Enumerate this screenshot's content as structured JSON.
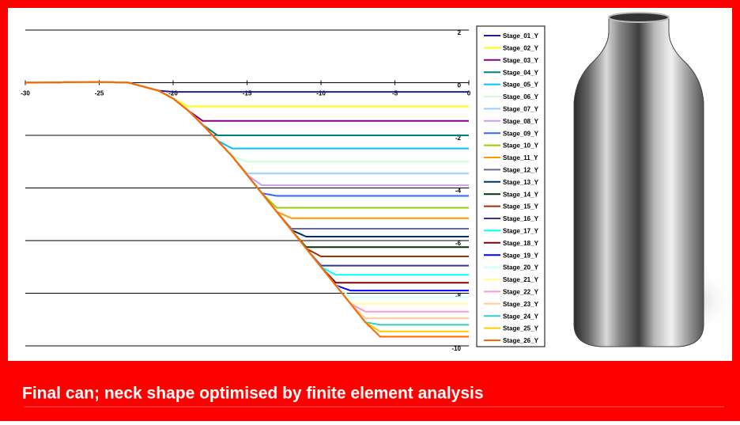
{
  "chart_data": {
    "type": "line",
    "x": [
      -30,
      -25,
      -23,
      -21,
      -20,
      -19,
      -18,
      -17,
      -16,
      -15,
      -14,
      -13,
      -12,
      -11,
      -10,
      -9,
      -8,
      -7,
      -6,
      -3,
      0
    ],
    "xlim": [
      -30,
      0
    ],
    "xticks": [
      -30,
      -25,
      -20,
      -15,
      -10,
      -5,
      0
    ],
    "ylim": [
      -10,
      2
    ],
    "yticks": [
      2,
      0,
      -2,
      -4,
      -6,
      -8,
      -10
    ],
    "grid": true,
    "series": [
      {
        "name": "Stage_01_Y",
        "color": "#1f1f8f",
        "values": [
          0,
          0.03,
          0,
          -0.3,
          -0.35,
          -0.35,
          -0.35,
          -0.35,
          -0.35,
          -0.35,
          -0.35,
          -0.35,
          -0.35,
          -0.35,
          -0.35,
          -0.35,
          -0.35,
          -0.35,
          -0.35,
          -0.35,
          -0.35
        ]
      },
      {
        "name": "Stage_02_Y",
        "color": "#ffff00",
        "values": [
          0,
          0.03,
          0,
          -0.3,
          -0.6,
          -0.9,
          -0.9,
          -0.9,
          -0.9,
          -0.9,
          -0.9,
          -0.9,
          -0.9,
          -0.9,
          -0.9,
          -0.9,
          -0.9,
          -0.9,
          -0.9,
          -0.9,
          -0.9
        ]
      },
      {
        "name": "Stage_03_Y",
        "color": "#800080",
        "values": [
          0,
          0.03,
          0,
          -0.3,
          -0.6,
          -1.05,
          -1.45,
          -1.45,
          -1.45,
          -1.45,
          -1.45,
          -1.45,
          -1.45,
          -1.45,
          -1.45,
          -1.45,
          -1.45,
          -1.45,
          -1.45,
          -1.45,
          -1.45
        ]
      },
      {
        "name": "Stage_04_Y",
        "color": "#008080",
        "values": [
          0,
          0.03,
          0,
          -0.3,
          -0.6,
          -1.05,
          -1.6,
          -2.0,
          -2.0,
          -2.0,
          -2.0,
          -2.0,
          -2.0,
          -2.0,
          -2.0,
          -2.0,
          -2.0,
          -2.0,
          -2.0,
          -2.0,
          -2.0
        ]
      },
      {
        "name": "Stage_05_Y",
        "color": "#00c0ff",
        "values": [
          0,
          0.03,
          0,
          -0.3,
          -0.6,
          -1.05,
          -1.6,
          -2.2,
          -2.5,
          -2.5,
          -2.5,
          -2.5,
          -2.5,
          -2.5,
          -2.5,
          -2.5,
          -2.5,
          -2.5,
          -2.5,
          -2.5,
          -2.5
        ]
      },
      {
        "name": "Stage_06_Y",
        "color": "#ccffcc",
        "values": [
          0,
          0.03,
          0,
          -0.3,
          -0.6,
          -1.05,
          -1.6,
          -2.2,
          -2.8,
          -3.0,
          -3.0,
          -3.0,
          -3.0,
          -3.0,
          -3.0,
          -3.0,
          -3.0,
          -3.0,
          -3.0,
          -3.0,
          -3.0
        ]
      },
      {
        "name": "Stage_07_Y",
        "color": "#99ccff",
        "values": [
          0,
          0.03,
          0,
          -0.3,
          -0.6,
          -1.05,
          -1.6,
          -2.2,
          -2.8,
          -3.45,
          -3.45,
          -3.45,
          -3.45,
          -3.45,
          -3.45,
          -3.45,
          -3.45,
          -3.45,
          -3.45,
          -3.45,
          -3.45
        ]
      },
      {
        "name": "Stage_08_Y",
        "color": "#cc99ff",
        "values": [
          0,
          0.03,
          0,
          -0.3,
          -0.6,
          -1.05,
          -1.6,
          -2.2,
          -2.8,
          -3.5,
          -3.9,
          -3.9,
          -3.9,
          -3.9,
          -3.9,
          -3.9,
          -3.9,
          -3.9,
          -3.9,
          -3.9,
          -3.9
        ]
      },
      {
        "name": "Stage_09_Y",
        "color": "#3366ff",
        "values": [
          0,
          0.03,
          0,
          -0.3,
          -0.6,
          -1.05,
          -1.6,
          -2.2,
          -2.8,
          -3.5,
          -4.2,
          -4.3,
          -4.3,
          -4.3,
          -4.3,
          -4.3,
          -4.3,
          -4.3,
          -4.3,
          -4.3,
          -4.3
        ]
      },
      {
        "name": "Stage_10_Y",
        "color": "#99cc00",
        "values": [
          0,
          0.03,
          0,
          -0.3,
          -0.6,
          -1.05,
          -1.6,
          -2.2,
          -2.8,
          -3.5,
          -4.2,
          -4.75,
          -4.75,
          -4.75,
          -4.75,
          -4.75,
          -4.75,
          -4.75,
          -4.75,
          -4.75,
          -4.75
        ]
      },
      {
        "name": "Stage_11_Y",
        "color": "#ff9900",
        "values": [
          0,
          0.03,
          0,
          -0.3,
          -0.6,
          -1.05,
          -1.6,
          -2.2,
          -2.8,
          -3.5,
          -4.2,
          -4.9,
          -5.15,
          -5.15,
          -5.15,
          -5.15,
          -5.15,
          -5.15,
          -5.15,
          -5.15,
          -5.15
        ]
      },
      {
        "name": "Stage_12_Y",
        "color": "#666699",
        "values": [
          0,
          0.03,
          0,
          -0.3,
          -0.6,
          -1.05,
          -1.6,
          -2.2,
          -2.8,
          -3.5,
          -4.2,
          -4.9,
          -5.55,
          -5.55,
          -5.55,
          -5.55,
          -5.55,
          -5.55,
          -5.55,
          -5.55,
          -5.55
        ]
      },
      {
        "name": "Stage_13_Y",
        "color": "#003366",
        "values": [
          0,
          0.03,
          0,
          -0.3,
          -0.6,
          -1.05,
          -1.6,
          -2.2,
          -2.8,
          -3.5,
          -4.2,
          -4.9,
          -5.6,
          -5.85,
          -5.85,
          -5.85,
          -5.85,
          -5.85,
          -5.85,
          -5.85,
          -5.85
        ]
      },
      {
        "name": "Stage_14_Y",
        "color": "#003300",
        "values": [
          0,
          0.03,
          0,
          -0.3,
          -0.6,
          -1.05,
          -1.6,
          -2.2,
          -2.8,
          -3.5,
          -4.2,
          -4.9,
          -5.6,
          -6.25,
          -6.25,
          -6.25,
          -6.25,
          -6.25,
          -6.25,
          -6.25,
          -6.25
        ]
      },
      {
        "name": "Stage_15_Y",
        "color": "#993300",
        "values": [
          0,
          0.03,
          0,
          -0.3,
          -0.6,
          -1.05,
          -1.6,
          -2.2,
          -2.8,
          -3.5,
          -4.2,
          -4.9,
          -5.6,
          -6.3,
          -6.6,
          -6.6,
          -6.6,
          -6.6,
          -6.6,
          -6.6,
          -6.6
        ]
      },
      {
        "name": "Stage_16_Y",
        "color": "#333399",
        "values": [
          0,
          0.03,
          0,
          -0.3,
          -0.6,
          -1.05,
          -1.6,
          -2.2,
          -2.8,
          -3.5,
          -4.2,
          -4.9,
          -5.6,
          -6.3,
          -6.95,
          -6.95,
          -6.95,
          -6.95,
          -6.95,
          -6.95,
          -6.95
        ]
      },
      {
        "name": "Stage_17_Y",
        "color": "#00ffff",
        "values": [
          0,
          0.03,
          0,
          -0.3,
          -0.6,
          -1.05,
          -1.6,
          -2.2,
          -2.8,
          -3.5,
          -4.2,
          -4.9,
          -5.6,
          -6.3,
          -7.0,
          -7.3,
          -7.3,
          -7.3,
          -7.3,
          -7.3,
          -7.3
        ]
      },
      {
        "name": "Stage_18_Y",
        "color": "#800000",
        "values": [
          0,
          0.03,
          0,
          -0.3,
          -0.6,
          -1.05,
          -1.6,
          -2.2,
          -2.8,
          -3.5,
          -4.2,
          -4.9,
          -5.6,
          -6.3,
          -7.0,
          -7.6,
          -7.6,
          -7.6,
          -7.6,
          -7.6,
          -7.6
        ]
      },
      {
        "name": "Stage_19_Y",
        "color": "#0000ff",
        "values": [
          0,
          0.03,
          0,
          -0.3,
          -0.6,
          -1.05,
          -1.6,
          -2.2,
          -2.8,
          -3.5,
          -4.2,
          -4.9,
          -5.6,
          -6.3,
          -7.0,
          -7.7,
          -7.9,
          -7.9,
          -7.9,
          -7.9,
          -7.9
        ]
      },
      {
        "name": "Stage_20_Y",
        "color": "#ccffff",
        "values": [
          0,
          0.03,
          0,
          -0.3,
          -0.6,
          -1.05,
          -1.6,
          -2.2,
          -2.8,
          -3.5,
          -4.2,
          -4.9,
          -5.6,
          -6.3,
          -7.0,
          -7.7,
          -8.15,
          -8.15,
          -8.15,
          -8.15,
          -8.15
        ]
      },
      {
        "name": "Stage_21_Y",
        "color": "#ffff99",
        "values": [
          0,
          0.03,
          0,
          -0.3,
          -0.6,
          -1.05,
          -1.6,
          -2.2,
          -2.8,
          -3.5,
          -4.2,
          -4.9,
          -5.6,
          -6.3,
          -7.0,
          -7.7,
          -8.4,
          -8.4,
          -8.4,
          -8.4,
          -8.4
        ]
      },
      {
        "name": "Stage_22_Y",
        "color": "#ff99cc",
        "values": [
          0,
          0.03,
          0,
          -0.3,
          -0.6,
          -1.05,
          -1.6,
          -2.2,
          -2.8,
          -3.5,
          -4.2,
          -4.9,
          -5.6,
          -6.3,
          -7.0,
          -7.7,
          -8.4,
          -8.7,
          -8.7,
          -8.7,
          -8.7
        ]
      },
      {
        "name": "Stage_23_Y",
        "color": "#ffcc99",
        "values": [
          0,
          0.03,
          0,
          -0.3,
          -0.6,
          -1.05,
          -1.6,
          -2.2,
          -2.8,
          -3.5,
          -4.2,
          -4.9,
          -5.6,
          -6.3,
          -7.0,
          -7.7,
          -8.4,
          -8.95,
          -8.95,
          -8.95,
          -8.95
        ]
      },
      {
        "name": "Stage_24_Y",
        "color": "#33cccc",
        "values": [
          0,
          0.03,
          0,
          -0.3,
          -0.6,
          -1.05,
          -1.6,
          -2.2,
          -2.8,
          -3.5,
          -4.2,
          -4.9,
          -5.6,
          -6.3,
          -7.0,
          -7.7,
          -8.4,
          -9.1,
          -9.2,
          -9.2,
          -9.2
        ]
      },
      {
        "name": "Stage_25_Y",
        "color": "#ffcc00",
        "values": [
          0,
          0.03,
          0,
          -0.3,
          -0.6,
          -1.05,
          -1.6,
          -2.2,
          -2.8,
          -3.5,
          -4.2,
          -4.9,
          -5.6,
          -6.3,
          -7.0,
          -7.7,
          -8.4,
          -9.1,
          -9.45,
          -9.45,
          -9.45
        ]
      },
      {
        "name": "Stage_26_Y",
        "color": "#ff6600",
        "values": [
          0,
          0.03,
          0,
          -0.3,
          -0.6,
          -1.05,
          -1.6,
          -2.2,
          -2.8,
          -3.5,
          -4.2,
          -4.9,
          -5.6,
          -6.3,
          -7.0,
          -7.7,
          -8.4,
          -9.1,
          -9.65,
          -9.65,
          -9.65
        ]
      }
    ]
  },
  "caption": "Final can; neck shape optimised by finite element analysis"
}
